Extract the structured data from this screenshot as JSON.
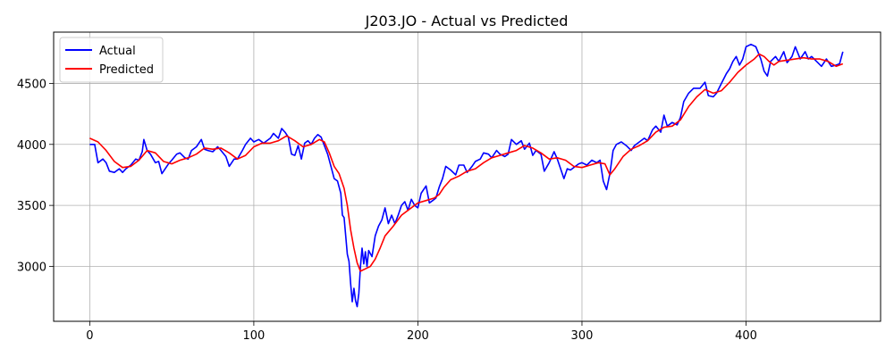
{
  "chart_data": {
    "type": "line",
    "title": "J203.JO - Actual vs Predicted",
    "xlabel": "",
    "ylabel": "",
    "xlim": [
      -22,
      482
    ],
    "ylim": [
      2550,
      4920
    ],
    "xticks": [
      0,
      100,
      200,
      300,
      400
    ],
    "yticks": [
      3000,
      3500,
      4000,
      4500
    ],
    "grid": true,
    "legend_position": "upper-left",
    "series": [
      {
        "name": "Actual",
        "color": "#0000ff",
        "points": [
          [
            0,
            4000
          ],
          [
            3,
            4000
          ],
          [
            5,
            3850
          ],
          [
            8,
            3880
          ],
          [
            10,
            3850
          ],
          [
            12,
            3780
          ],
          [
            15,
            3770
          ],
          [
            18,
            3800
          ],
          [
            20,
            3770
          ],
          [
            22,
            3800
          ],
          [
            25,
            3830
          ],
          [
            28,
            3880
          ],
          [
            30,
            3870
          ],
          [
            32,
            3940
          ],
          [
            33,
            4040
          ],
          [
            35,
            3950
          ],
          [
            37,
            3920
          ],
          [
            40,
            3850
          ],
          [
            42,
            3860
          ],
          [
            44,
            3760
          ],
          [
            46,
            3800
          ],
          [
            48,
            3840
          ],
          [
            50,
            3870
          ],
          [
            53,
            3920
          ],
          [
            55,
            3930
          ],
          [
            58,
            3890
          ],
          [
            60,
            3880
          ],
          [
            62,
            3950
          ],
          [
            65,
            3980
          ],
          [
            68,
            4040
          ],
          [
            70,
            3960
          ],
          [
            72,
            3950
          ],
          [
            75,
            3940
          ],
          [
            78,
            3980
          ],
          [
            80,
            3950
          ],
          [
            83,
            3900
          ],
          [
            85,
            3820
          ],
          [
            88,
            3880
          ],
          [
            90,
            3880
          ],
          [
            93,
            3950
          ],
          [
            95,
            4000
          ],
          [
            98,
            4050
          ],
          [
            100,
            4020
          ],
          [
            103,
            4040
          ],
          [
            106,
            4010
          ],
          [
            110,
            4050
          ],
          [
            112,
            4090
          ],
          [
            115,
            4050
          ],
          [
            117,
            4130
          ],
          [
            119,
            4100
          ],
          [
            121,
            4060
          ],
          [
            123,
            3920
          ],
          [
            125,
            3910
          ],
          [
            127,
            3990
          ],
          [
            129,
            3880
          ],
          [
            131,
            4010
          ],
          [
            133,
            4030
          ],
          [
            135,
            4000
          ],
          [
            137,
            4050
          ],
          [
            139,
            4080
          ],
          [
            141,
            4060
          ],
          [
            143,
            3990
          ],
          [
            145,
            3920
          ],
          [
            147,
            3820
          ],
          [
            149,
            3720
          ],
          [
            151,
            3700
          ],
          [
            153,
            3600
          ],
          [
            154,
            3420
          ],
          [
            155,
            3400
          ],
          [
            156,
            3250
          ],
          [
            157,
            3100
          ],
          [
            158,
            3040
          ],
          [
            159,
            2860
          ],
          [
            160,
            2710
          ],
          [
            161,
            2820
          ],
          [
            162,
            2720
          ],
          [
            163,
            2670
          ],
          [
            164,
            2780
          ],
          [
            165,
            3000
          ],
          [
            166,
            3150
          ],
          [
            167,
            3020
          ],
          [
            168,
            3120
          ],
          [
            169,
            3000
          ],
          [
            170,
            3130
          ],
          [
            172,
            3080
          ],
          [
            174,
            3250
          ],
          [
            176,
            3330
          ],
          [
            178,
            3380
          ],
          [
            180,
            3480
          ],
          [
            182,
            3350
          ],
          [
            184,
            3420
          ],
          [
            186,
            3350
          ],
          [
            188,
            3420
          ],
          [
            190,
            3500
          ],
          [
            192,
            3530
          ],
          [
            194,
            3460
          ],
          [
            196,
            3550
          ],
          [
            198,
            3500
          ],
          [
            200,
            3480
          ],
          [
            202,
            3600
          ],
          [
            205,
            3660
          ],
          [
            207,
            3520
          ],
          [
            209,
            3540
          ],
          [
            211,
            3560
          ],
          [
            213,
            3650
          ],
          [
            215,
            3720
          ],
          [
            217,
            3820
          ],
          [
            220,
            3790
          ],
          [
            223,
            3750
          ],
          [
            225,
            3830
          ],
          [
            228,
            3830
          ],
          [
            230,
            3770
          ],
          [
            233,
            3820
          ],
          [
            235,
            3860
          ],
          [
            238,
            3880
          ],
          [
            240,
            3930
          ],
          [
            243,
            3920
          ],
          [
            245,
            3890
          ],
          [
            248,
            3950
          ],
          [
            250,
            3920
          ],
          [
            253,
            3900
          ],
          [
            255,
            3920
          ],
          [
            257,
            4040
          ],
          [
            260,
            4000
          ],
          [
            263,
            4030
          ],
          [
            265,
            3960
          ],
          [
            268,
            4010
          ],
          [
            270,
            3910
          ],
          [
            272,
            3950
          ],
          [
            275,
            3920
          ],
          [
            277,
            3780
          ],
          [
            280,
            3850
          ],
          [
            283,
            3940
          ],
          [
            285,
            3880
          ],
          [
            287,
            3800
          ],
          [
            289,
            3720
          ],
          [
            291,
            3800
          ],
          [
            293,
            3790
          ],
          [
            296,
            3820
          ],
          [
            298,
            3840
          ],
          [
            300,
            3850
          ],
          [
            303,
            3830
          ],
          [
            306,
            3870
          ],
          [
            309,
            3850
          ],
          [
            311,
            3870
          ],
          [
            313,
            3700
          ],
          [
            315,
            3630
          ],
          [
            317,
            3760
          ],
          [
            319,
            3950
          ],
          [
            321,
            4000
          ],
          [
            324,
            4020
          ],
          [
            327,
            3990
          ],
          [
            330,
            3950
          ],
          [
            332,
            3990
          ],
          [
            335,
            4020
          ],
          [
            338,
            4050
          ],
          [
            340,
            4030
          ],
          [
            343,
            4120
          ],
          [
            345,
            4150
          ],
          [
            348,
            4100
          ],
          [
            350,
            4240
          ],
          [
            352,
            4150
          ],
          [
            355,
            4180
          ],
          [
            358,
            4160
          ],
          [
            360,
            4220
          ],
          [
            362,
            4350
          ],
          [
            365,
            4420
          ],
          [
            368,
            4460
          ],
          [
            372,
            4460
          ],
          [
            375,
            4510
          ],
          [
            377,
            4400
          ],
          [
            380,
            4390
          ],
          [
            382,
            4420
          ],
          [
            385,
            4500
          ],
          [
            388,
            4580
          ],
          [
            390,
            4620
          ],
          [
            392,
            4680
          ],
          [
            394,
            4720
          ],
          [
            396,
            4650
          ],
          [
            398,
            4700
          ],
          [
            400,
            4800
          ],
          [
            403,
            4820
          ],
          [
            406,
            4800
          ],
          [
            409,
            4700
          ],
          [
            411,
            4600
          ],
          [
            413,
            4560
          ],
          [
            415,
            4680
          ],
          [
            418,
            4720
          ],
          [
            420,
            4680
          ],
          [
            423,
            4760
          ],
          [
            425,
            4670
          ],
          [
            428,
            4720
          ],
          [
            430,
            4800
          ],
          [
            433,
            4700
          ],
          [
            436,
            4760
          ],
          [
            438,
            4700
          ],
          [
            440,
            4720
          ],
          [
            443,
            4680
          ],
          [
            446,
            4640
          ],
          [
            449,
            4700
          ],
          [
            452,
            4640
          ],
          [
            455,
            4650
          ],
          [
            457,
            4660
          ],
          [
            459,
            4760
          ]
        ]
      },
      {
        "name": "Predicted",
        "color": "#ff0000",
        "points": [
          [
            0,
            4050
          ],
          [
            5,
            4020
          ],
          [
            10,
            3950
          ],
          [
            15,
            3860
          ],
          [
            20,
            3810
          ],
          [
            25,
            3820
          ],
          [
            30,
            3870
          ],
          [
            35,
            3950
          ],
          [
            40,
            3930
          ],
          [
            45,
            3860
          ],
          [
            50,
            3840
          ],
          [
            55,
            3870
          ],
          [
            60,
            3890
          ],
          [
            65,
            3920
          ],
          [
            70,
            3970
          ],
          [
            75,
            3960
          ],
          [
            80,
            3970
          ],
          [
            85,
            3930
          ],
          [
            90,
            3880
          ],
          [
            95,
            3910
          ],
          [
            100,
            3980
          ],
          [
            105,
            4010
          ],
          [
            110,
            4010
          ],
          [
            115,
            4030
          ],
          [
            120,
            4070
          ],
          [
            125,
            4030
          ],
          [
            130,
            3980
          ],
          [
            135,
            4000
          ],
          [
            140,
            4040
          ],
          [
            143,
            4020
          ],
          [
            146,
            3930
          ],
          [
            149,
            3820
          ],
          [
            152,
            3760
          ],
          [
            155,
            3640
          ],
          [
            157,
            3500
          ],
          [
            159,
            3300
          ],
          [
            161,
            3150
          ],
          [
            163,
            3030
          ],
          [
            165,
            2960
          ],
          [
            168,
            2980
          ],
          [
            171,
            3000
          ],
          [
            174,
            3060
          ],
          [
            177,
            3150
          ],
          [
            180,
            3250
          ],
          [
            185,
            3330
          ],
          [
            190,
            3420
          ],
          [
            195,
            3470
          ],
          [
            200,
            3520
          ],
          [
            205,
            3540
          ],
          [
            210,
            3560
          ],
          [
            213,
            3590
          ],
          [
            216,
            3650
          ],
          [
            220,
            3710
          ],
          [
            225,
            3740
          ],
          [
            230,
            3780
          ],
          [
            235,
            3800
          ],
          [
            240,
            3850
          ],
          [
            245,
            3890
          ],
          [
            250,
            3910
          ],
          [
            255,
            3930
          ],
          [
            260,
            3950
          ],
          [
            265,
            3990
          ],
          [
            270,
            3970
          ],
          [
            275,
            3930
          ],
          [
            280,
            3880
          ],
          [
            285,
            3890
          ],
          [
            290,
            3870
          ],
          [
            295,
            3820
          ],
          [
            300,
            3810
          ],
          [
            305,
            3830
          ],
          [
            310,
            3850
          ],
          [
            314,
            3840
          ],
          [
            317,
            3750
          ],
          [
            320,
            3800
          ],
          [
            325,
            3900
          ],
          [
            330,
            3960
          ],
          [
            335,
            3990
          ],
          [
            340,
            4030
          ],
          [
            345,
            4100
          ],
          [
            350,
            4140
          ],
          [
            355,
            4150
          ],
          [
            360,
            4200
          ],
          [
            365,
            4310
          ],
          [
            370,
            4390
          ],
          [
            375,
            4450
          ],
          [
            380,
            4420
          ],
          [
            385,
            4440
          ],
          [
            390,
            4510
          ],
          [
            395,
            4590
          ],
          [
            400,
            4650
          ],
          [
            405,
            4700
          ],
          [
            408,
            4740
          ],
          [
            411,
            4720
          ],
          [
            414,
            4680
          ],
          [
            417,
            4650
          ],
          [
            420,
            4680
          ],
          [
            425,
            4690
          ],
          [
            430,
            4700
          ],
          [
            435,
            4710
          ],
          [
            440,
            4700
          ],
          [
            445,
            4700
          ],
          [
            450,
            4680
          ],
          [
            455,
            4640
          ],
          [
            459,
            4660
          ]
        ]
      }
    ]
  }
}
